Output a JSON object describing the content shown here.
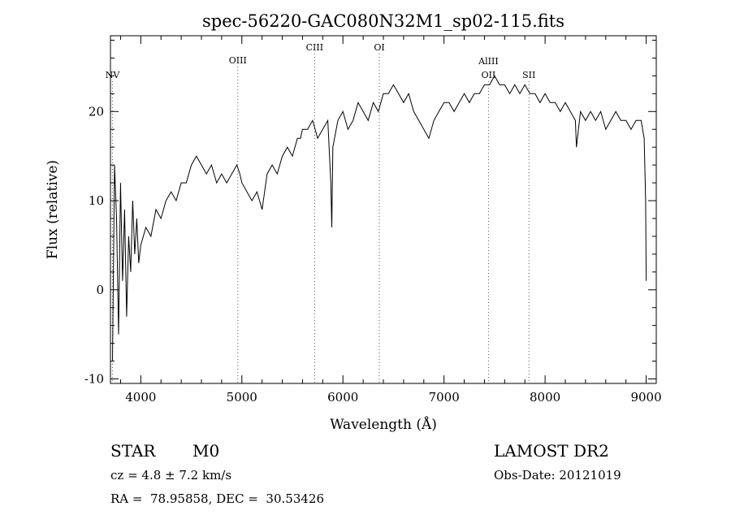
{
  "chart_data": {
    "type": "line",
    "title": "spec-56220-GAC080N32M1_sp02-115.fits",
    "xlabel": "Wavelength (Å)",
    "ylabel": "Flux (relative)",
    "xlim": [
      3700,
      9100
    ],
    "ylim": [
      -10.5,
      28.5
    ],
    "xticks": [
      4000,
      5000,
      6000,
      7000,
      8000,
      9000
    ],
    "yticks": [
      -10,
      0,
      10,
      20
    ],
    "grid": false,
    "series": [
      {
        "x": [
          3720,
          3740,
          3760,
          3780,
          3800,
          3820,
          3840,
          3860,
          3880,
          3900,
          3920,
          3940,
          3960,
          3980,
          4000,
          4050,
          4100,
          4150,
          4200,
          4250,
          4300,
          4350,
          4400,
          4450,
          4500,
          4550,
          4600,
          4650,
          4700,
          4750,
          4800,
          4850,
          4900,
          4950,
          4980,
          5000,
          5050,
          5100,
          5150,
          5200,
          5250,
          5300,
          5350,
          5400,
          5450,
          5500,
          5550,
          5580,
          5600,
          5650,
          5700,
          5750,
          5800,
          5850,
          5880,
          5890,
          5900,
          5950,
          6000,
          6050,
          6100,
          6150,
          6200,
          6250,
          6300,
          6350,
          6400,
          6450,
          6500,
          6550,
          6600,
          6650,
          6700,
          6750,
          6800,
          6850,
          6900,
          6950,
          7000,
          7050,
          7100,
          7150,
          7200,
          7250,
          7300,
          7350,
          7400,
          7450,
          7500,
          7550,
          7600,
          7650,
          7700,
          7750,
          7800,
          7850,
          7900,
          7950,
          8000,
          8050,
          8100,
          8150,
          8200,
          8250,
          8300,
          8310,
          8350,
          8400,
          8450,
          8500,
          8550,
          8600,
          8650,
          8700,
          8750,
          8800,
          8850,
          8900,
          8950,
          8980,
          8995,
          9000
        ],
        "y": [
          -8,
          14,
          8,
          -5,
          12,
          1,
          9,
          -3,
          6,
          2,
          10,
          4,
          8,
          3,
          5,
          7,
          6,
          9,
          8,
          10,
          11,
          10,
          12,
          12,
          14,
          15,
          14,
          13,
          14,
          12,
          13,
          12,
          13,
          14,
          13,
          12,
          11,
          10,
          11,
          9,
          13,
          14,
          13,
          15,
          16,
          15,
          17,
          17,
          18,
          18,
          19,
          17,
          18,
          19,
          12,
          7,
          16,
          19,
          20,
          18,
          19,
          21,
          20,
          19,
          21,
          20,
          22,
          22,
          23,
          22,
          21,
          22,
          20,
          19,
          18,
          17,
          19,
          20,
          21,
          21,
          20,
          21,
          22,
          21,
          22,
          22,
          23,
          23,
          24,
          23,
          23,
          22,
          23,
          22,
          23,
          22,
          22,
          21,
          22,
          21,
          21,
          20,
          21,
          20,
          19,
          16,
          20,
          19,
          20,
          19,
          20,
          18,
          19,
          20,
          19,
          19,
          18,
          19,
          19,
          17,
          10,
          1
        ]
      }
    ],
    "lines": [
      {
        "label": "NV",
        "x": 3720
      },
      {
        "label": "OIII",
        "x": 4960
      },
      {
        "label": "CIII",
        "x": 5720
      },
      {
        "label": "OI",
        "x": 6360
      },
      {
        "label": "AlIII",
        "x": 7440
      },
      {
        "label": "OII",
        "x": 7440
      },
      {
        "label": "SII",
        "x": 7840
      }
    ]
  },
  "info": {
    "class_label": "STAR",
    "subclass": "M0",
    "survey": "LAMOST DR2",
    "cz": "cz = 4.8 ± 7.2 km/s",
    "obs_date": "Obs-Date: 20121019",
    "radec": "RA =  78.95858, DEC =  30.53426"
  }
}
